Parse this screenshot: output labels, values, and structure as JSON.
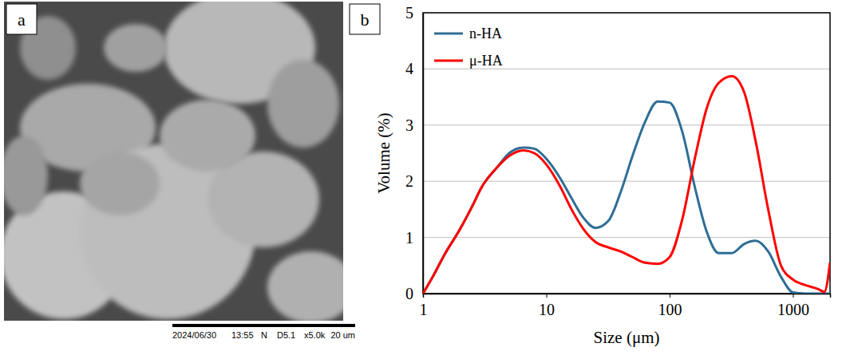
{
  "image_panel": {
    "panel": "a",
    "caption": [
      "2024/06/30",
      "13:55",
      "N",
      "D5.1",
      "x5.0k",
      "20 um"
    ]
  },
  "chart_data": {
    "type": "line",
    "panel": "b",
    "x_label": "Size (μm)",
    "y_label": "Volume (%)",
    "log": "x",
    "grid": true,
    "legend": "upper left",
    "xlim": [
      1,
      2000
    ],
    "xticks": [
      1,
      10,
      100,
      1000
    ],
    "ylim": [
      0,
      5
    ],
    "yticks": [
      0,
      1,
      2,
      3,
      4,
      5
    ],
    "x": [
      1,
      1.2,
      1.5,
      2,
      2.5,
      3,
      4,
      5,
      6.5,
      8,
      10,
      13,
      16,
      20,
      25,
      32,
      40,
      50,
      63,
      80,
      100,
      126,
      160,
      200,
      250,
      320,
      400,
      500,
      630,
      800,
      1000,
      1260,
      1600,
      1800,
      2000
    ],
    "series": [
      {
        "name": "n-HA",
        "color": "#2e6e96",
        "values": [
          0,
          0.3,
          0.7,
          1.15,
          1.55,
          1.9,
          2.25,
          2.5,
          2.6,
          2.58,
          2.4,
          2.05,
          1.7,
          1.35,
          1.17,
          1.3,
          1.8,
          2.45,
          3.05,
          3.42,
          3.4,
          2.9,
          1.9,
          1.1,
          0.72,
          0.72,
          0.88,
          0.94,
          0.75,
          0.3,
          0.02,
          0,
          0,
          0,
          0
        ]
      },
      {
        "name": "μ-HA",
        "color": "#ff0000",
        "values": [
          0,
          0.3,
          0.7,
          1.15,
          1.55,
          1.9,
          2.25,
          2.45,
          2.55,
          2.5,
          2.3,
          1.9,
          1.5,
          1.15,
          0.92,
          0.82,
          0.75,
          0.65,
          0.55,
          0.53,
          0.65,
          1.3,
          2.4,
          3.3,
          3.75,
          3.87,
          3.6,
          2.7,
          1.5,
          0.5,
          0.25,
          0.15,
          0.08,
          0.03,
          0.55
        ]
      }
    ]
  }
}
